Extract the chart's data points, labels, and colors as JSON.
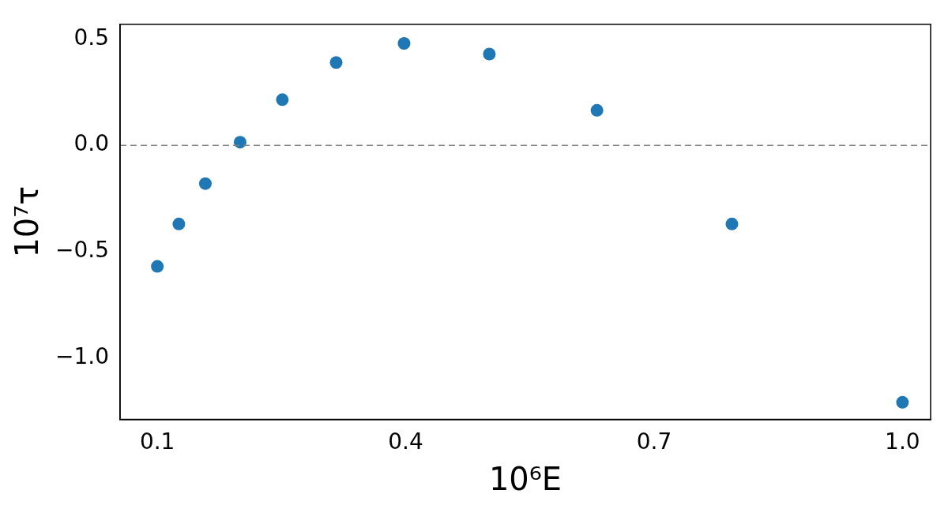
{
  "chart_data": {
    "type": "scatter",
    "xlabel": "10⁶E",
    "ylabel": "10⁷τ",
    "marker": "circle",
    "grid": false,
    "legend": false,
    "x": [
      0.1,
      0.126,
      0.158,
      0.2,
      0.251,
      0.316,
      0.398,
      0.501,
      0.631,
      0.794,
      1.0
    ],
    "series": [
      {
        "color": "#1f77b4",
        "values": [
          -0.57,
          -0.37,
          -0.18,
          0.015,
          0.215,
          0.39,
          0.48,
          0.43,
          0.165,
          -0.37,
          -1.21
        ]
      }
    ],
    "xlim": [
      0.055,
      1.034
    ],
    "xticks": [
      0.1,
      0.4,
      0.7,
      {
        "value": 1,
        "label": "1.0"
      }
    ],
    "ylim": [
      -1.29,
      0.57
    ],
    "yticks": [
      {
        "value": -1,
        "label": "−1.0"
      },
      {
        "value": -0.5,
        "label": "−0.5"
      },
      {
        "value": 0,
        "label": "0.0"
      },
      0.5
    ],
    "ref_lines": [
      {
        "axis": "y",
        "value": 0,
        "color": "#808080",
        "line_style": "dashed"
      }
    ]
  }
}
